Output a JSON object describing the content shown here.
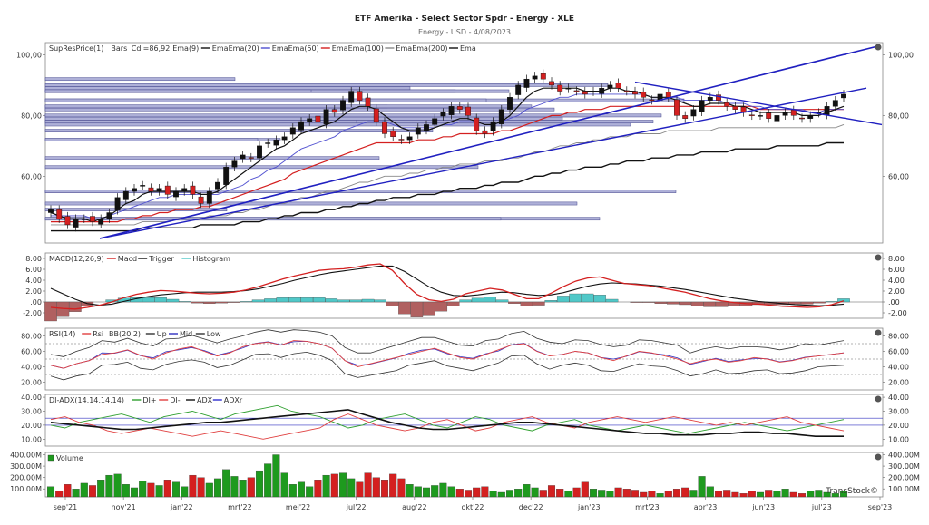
{
  "header": {
    "title": "ETF Amerika - Select Sector Spdr - Energy - XLE",
    "subtitle": "Energy - USD - 4/08/2023"
  },
  "colors": {
    "bull": "#1e9a1e",
    "bear": "#d42020",
    "ema9": "#111111",
    "ema20": "#5050d0",
    "ema50": "#d42020",
    "ema100": "#888888",
    "ema200": "#111111",
    "trend": "#2020c0",
    "hist_pos": "#50c8c8",
    "hist_neg": "#b06060",
    "rsi": "#e04040",
    "bb": "#333333",
    "diplus": "#30a030",
    "diminus": "#e04040",
    "adx": "#111111",
    "adxr": "#3030d0"
  },
  "chart_data": [
    {
      "type": "candlestick",
      "panel": "price",
      "legend": [
        "SupResPrice(1)",
        "Bars",
        "Cdl=86,92",
        "Ema(9)",
        "Ema",
        "Ema(20)",
        "Ema",
        "Ema(50)",
        "Ema",
        "Ema(100)",
        "Ema",
        "Ema(200)",
        "Ema"
      ],
      "ylim": [
        38,
        104
      ],
      "yticks": [
        100,
        80,
        60
      ],
      "ytick_labels": [
        "100,00",
        "80,00",
        "60,00"
      ],
      "close": [
        49,
        46,
        44,
        46,
        46,
        45,
        46,
        48,
        53,
        55,
        56,
        57,
        55,
        56,
        54,
        55,
        56,
        54,
        51,
        55,
        58,
        63,
        65,
        67,
        66,
        70,
        71,
        72,
        73,
        76,
        78,
        79,
        78,
        82,
        81,
        85,
        88,
        85,
        83,
        78,
        74,
        73,
        72,
        73,
        76,
        77,
        79,
        81,
        83,
        82,
        80,
        75,
        74,
        78,
        82,
        86,
        90,
        92,
        93,
        92,
        90,
        88,
        89,
        88,
        87,
        88,
        89,
        90,
        89,
        88,
        87,
        86,
        85,
        87,
        86,
        80,
        79,
        82,
        85,
        86,
        85,
        83,
        82,
        81,
        80,
        80,
        79,
        80,
        81,
        80,
        79,
        80,
        81,
        83,
        85,
        87
      ],
      "ema9": [
        48,
        47,
        46,
        46,
        46,
        45,
        46,
        47,
        49,
        51,
        52,
        54,
        55,
        55,
        55,
        55,
        55,
        55,
        54,
        54,
        55,
        57,
        59,
        61,
        63,
        65,
        67,
        69,
        70,
        72,
        74,
        75,
        76,
        77,
        78,
        80,
        82,
        83,
        83,
        82,
        80,
        78,
        76,
        75,
        75,
        75,
        76,
        77,
        78,
        79,
        79,
        78,
        77,
        77,
        78,
        80,
        83,
        86,
        88,
        89,
        89,
        89,
        89,
        89,
        88,
        88,
        88,
        89,
        89,
        88,
        88,
        87,
        86,
        86,
        86,
        85,
        84,
        83,
        83,
        84,
        84,
        84,
        83,
        83,
        82,
        81,
        81,
        81,
        81,
        81,
        80,
        80,
        80,
        81,
        82,
        83
      ],
      "ema20": [
        47,
        47,
        47,
        47,
        47,
        46,
        46,
        47,
        48,
        49,
        50,
        51,
        52,
        53,
        53,
        54,
        54,
        54,
        54,
        54,
        54,
        55,
        56,
        57,
        59,
        60,
        62,
        63,
        65,
        67,
        69,
        70,
        71,
        72,
        73,
        75,
        76,
        77,
        78,
        78,
        78,
        77,
        76,
        76,
        76,
        76,
        76,
        77,
        77,
        78,
        78,
        78,
        77,
        77,
        78,
        79,
        80,
        82,
        83,
        84,
        85,
        86,
        86,
        87,
        87,
        87,
        87,
        87,
        87,
        87,
        87,
        87,
        86,
        86,
        86,
        86,
        85,
        85,
        85,
        85,
        85,
        84,
        84,
        84,
        83,
        83,
        82,
        82,
        82,
        82,
        82,
        81,
        81,
        82,
        82,
        82
      ],
      "ema50": [
        45,
        45,
        45,
        45,
        45,
        45,
        45,
        45,
        45,
        46,
        46,
        47,
        47,
        48,
        48,
        49,
        49,
        49,
        50,
        50,
        51,
        52,
        53,
        54,
        55,
        56,
        57,
        58,
        59,
        61,
        62,
        63,
        64,
        65,
        66,
        67,
        68,
        69,
        70,
        71,
        71,
        71,
        71,
        71,
        72,
        72,
        72,
        73,
        73,
        74,
        74,
        74,
        74,
        74,
        75,
        75,
        76,
        77,
        78,
        79,
        80,
        80,
        81,
        81,
        82,
        82,
        82,
        83,
        83,
        83,
        83,
        83,
        83,
        83,
        83,
        83,
        83,
        83,
        83,
        83,
        83,
        83,
        83,
        83,
        83,
        82,
        82,
        82,
        82,
        82,
        82,
        82,
        82,
        82,
        82,
        82
      ],
      "ema100": [
        44,
        44,
        44,
        44,
        44,
        44,
        44,
        44,
        44,
        44,
        44,
        45,
        45,
        45,
        45,
        46,
        46,
        46,
        46,
        47,
        47,
        47,
        48,
        48,
        49,
        49,
        50,
        51,
        51,
        52,
        53,
        53,
        54,
        55,
        55,
        56,
        57,
        58,
        58,
        59,
        60,
        60,
        60,
        61,
        61,
        62,
        62,
        63,
        63,
        64,
        64,
        64,
        65,
        65,
        65,
        66,
        66,
        67,
        68,
        68,
        69,
        70,
        70,
        71,
        71,
        72,
        72,
        73,
        73,
        73,
        74,
        74,
        74,
        74,
        75,
        75,
        75,
        75,
        75,
        75,
        76,
        76,
        76,
        76,
        76,
        76,
        76,
        76,
        76,
        76,
        76,
        76,
        76,
        76,
        76,
        77
      ],
      "ema200": [
        42,
        42,
        42,
        42,
        42,
        42,
        42,
        42,
        42,
        42,
        42,
        43,
        43,
        43,
        43,
        43,
        43,
        43,
        44,
        44,
        44,
        44,
        44,
        45,
        45,
        45,
        46,
        46,
        47,
        47,
        48,
        48,
        48,
        49,
        49,
        50,
        50,
        51,
        51,
        52,
        52,
        53,
        53,
        53,
        54,
        54,
        54,
        55,
        55,
        56,
        56,
        56,
        57,
        57,
        58,
        58,
        58,
        59,
        60,
        60,
        61,
        61,
        62,
        62,
        63,
        63,
        63,
        64,
        64,
        65,
        65,
        65,
        66,
        66,
        66,
        67,
        67,
        67,
        68,
        68,
        68,
        68,
        69,
        69,
        69,
        69,
        69,
        70,
        70,
        70,
        70,
        70,
        70,
        71,
        71,
        71
      ]
    },
    {
      "type": "line",
      "panel": "macd",
      "legend": [
        "MACD(12,26,9)",
        "Macd",
        "Trigger",
        "Histogram"
      ],
      "ylim": [
        -3,
        9
      ],
      "yticks": [
        8,
        6,
        4,
        2,
        0,
        -2
      ],
      "ytick_labels": [
        "8.00",
        "6.00",
        "4.00",
        "2.00",
        ".00",
        "-2.00"
      ],
      "macd": [
        -1,
        -1.2,
        -1.3,
        -1,
        -0.6,
        0,
        0.8,
        1.4,
        1.8,
        2.1,
        2,
        1.8,
        1.6,
        1.5,
        1.6,
        1.8,
        2.2,
        2.8,
        3.5,
        4.2,
        4.8,
        5.3,
        5.8,
        6,
        6.1,
        6.4,
        6.8,
        7,
        5.8,
        3.4,
        1.4,
        0.4,
        0.1,
        0.5,
        1.5,
        2,
        2.5,
        2.2,
        1.4,
        0.6,
        0.6,
        1.6,
        2.8,
        3.8,
        4.4,
        4.6,
        4,
        3.4,
        3.2,
        3,
        2.6,
        2.2,
        1.8,
        1.2,
        0.6,
        0.2,
        -0.1,
        -0.3,
        -0.4,
        -0.6,
        -0.8,
        -0.9,
        -1,
        -0.9,
        -0.5,
        0.2
      ],
      "trigger": [
        2.5,
        1.5,
        0.5,
        -0.3,
        -0.6,
        -0.4,
        0.1,
        0.6,
        1,
        1.3,
        1.5,
        1.7,
        1.8,
        1.8,
        1.8,
        1.9,
        2.1,
        2.4,
        2.9,
        3.4,
        4,
        4.5,
        5,
        5.4,
        5.7,
        6,
        6.3,
        6.6,
        6.6,
        5.6,
        4.2,
        2.8,
        1.8,
        1.2,
        1.1,
        1.3,
        1.6,
        1.8,
        1.7,
        1.4,
        1.2,
        1.3,
        1.7,
        2.3,
        2.9,
        3.3,
        3.5,
        3.4,
        3.3,
        3.1,
        2.9,
        2.6,
        2.3,
        1.9,
        1.5,
        1.1,
        0.7,
        0.4,
        0.1,
        -0.1,
        -0.3,
        -0.5,
        -0.6,
        -0.7,
        -0.6,
        -0.4
      ]
    },
    {
      "type": "line",
      "panel": "rsi",
      "legend": [
        "RSI(14)",
        "Rsi",
        "BB(20,2)",
        "Up",
        "Mid",
        "Low"
      ],
      "ylim": [
        10,
        90
      ],
      "yticks": [
        80,
        60,
        40,
        20
      ],
      "ytick_labels": [
        "80.00",
        "60.00",
        "40.00",
        "20.00"
      ],
      "rsi": [
        42,
        38,
        44,
        48,
        56,
        58,
        62,
        55,
        50,
        58,
        63,
        66,
        60,
        54,
        58,
        66,
        70,
        72,
        68,
        74,
        73,
        70,
        64,
        48,
        40,
        44,
        48,
        52,
        56,
        60,
        64,
        58,
        52,
        50,
        56,
        62,
        68,
        70,
        60,
        54,
        56,
        60,
        58,
        52,
        48,
        54,
        60,
        58,
        54,
        50,
        44,
        48,
        50,
        46,
        48,
        52,
        50,
        46,
        48,
        52,
        54,
        56,
        58
      ]
    },
    {
      "type": "line",
      "panel": "adx",
      "legend": [
        "DI-ADX(14,14,14,14)",
        "DI+",
        "DI-",
        "ADX",
        "ADXr"
      ],
      "ylim": [
        5,
        42
      ],
      "yticks": [
        40,
        30,
        20,
        10
      ],
      "ytick_labels": [
        "40.00",
        "30.00",
        "20.00",
        "10.00"
      ],
      "di_plus": [
        20,
        18,
        22,
        24,
        26,
        28,
        25,
        22,
        26,
        28,
        30,
        27,
        24,
        28,
        30,
        32,
        34,
        30,
        28,
        26,
        22,
        18,
        20,
        24,
        26,
        28,
        24,
        20,
        18,
        22,
        26,
        24,
        20,
        18,
        16,
        20,
        22,
        24,
        20,
        18,
        16,
        18,
        20,
        18,
        16,
        14,
        16,
        18,
        20,
        22,
        20,
        18,
        16,
        18,
        20,
        22,
        24
      ],
      "di_minus": [
        24,
        26,
        22,
        20,
        16,
        14,
        16,
        18,
        16,
        14,
        12,
        14,
        16,
        14,
        12,
        10,
        12,
        14,
        16,
        18,
        24,
        28,
        24,
        20,
        18,
        16,
        18,
        22,
        24,
        20,
        16,
        18,
        22,
        24,
        26,
        22,
        20,
        18,
        22,
        24,
        26,
        24,
        22,
        24,
        26,
        24,
        22,
        20,
        22,
        20,
        22,
        24,
        26,
        22,
        20,
        18,
        16
      ],
      "adx": [
        22,
        21,
        20,
        19,
        18,
        17,
        17,
        18,
        19,
        20,
        21,
        22,
        22,
        23,
        24,
        25,
        26,
        27,
        28,
        29,
        30,
        31,
        28,
        25,
        22,
        20,
        18,
        17,
        17,
        18,
        19,
        20,
        21,
        22,
        22,
        21,
        20,
        19,
        18,
        17,
        16,
        15,
        14,
        14,
        13,
        13,
        13,
        14,
        14,
        15,
        15,
        14,
        14,
        13,
        12,
        12,
        12
      ]
    },
    {
      "type": "bar",
      "panel": "volume",
      "legend": [
        "Volume"
      ],
      "ylim": [
        30,
        420
      ],
      "yticks": [
        400,
        300,
        200,
        100
      ],
      "ytick_labels": [
        "400.00M",
        "300.00M",
        "200.00M",
        "100.00M"
      ],
      "values": [
        120,
        80,
        140,
        100,
        150,
        130,
        180,
        220,
        230,
        140,
        110,
        170,
        150,
        130,
        180,
        160,
        120,
        220,
        200,
        150,
        190,
        270,
        210,
        180,
        200,
        260,
        320,
        400,
        240,
        140,
        160,
        120,
        180,
        220,
        230,
        240,
        190,
        160,
        240,
        200,
        180,
        230,
        190,
        140,
        120,
        110,
        130,
        150,
        120,
        100,
        90,
        110,
        120,
        80,
        70,
        90,
        100,
        140,
        110,
        90,
        130,
        100,
        80,
        110,
        160,
        100,
        90,
        80,
        110,
        100,
        90,
        70,
        80,
        60,
        80,
        100,
        110,
        90,
        210,
        120,
        80,
        90,
        70,
        60,
        80,
        70,
        90,
        80,
        100,
        70,
        60,
        80,
        90,
        70,
        60,
        80
      ]
    }
  ],
  "x_axis": {
    "labels": [
      "sep'21",
      "nov'21",
      "jan'22",
      "mrt'22",
      "mei'22",
      "jul'22",
      "aug'22",
      "okt'22",
      "dec'22",
      "jan'23",
      "mrt'23",
      "apr'23",
      "jun'23",
      "jul'23",
      "sep'23"
    ]
  },
  "watermark": "TransStock©"
}
